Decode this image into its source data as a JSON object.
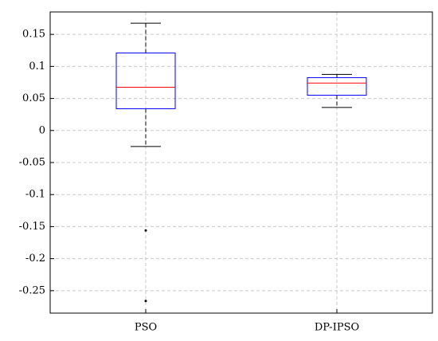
{
  "chart_data": {
    "type": "box",
    "categories": [
      "PSO",
      "DP-IPSO"
    ],
    "boxes": [
      {
        "whislo": -0.025,
        "q1": 0.034,
        "med": 0.0675,
        "q3": 0.121,
        "whishi": 0.1675,
        "fliers": [
          -0.156,
          -0.266
        ]
      },
      {
        "whislo": 0.036,
        "q1": 0.055,
        "med": 0.074,
        "q3": 0.0825,
        "whishi": 0.0875
      }
    ],
    "ylim": [
      -0.285,
      0.185
    ],
    "yticks": [
      -0.25,
      -0.2,
      -0.15,
      -0.1,
      -0.05,
      0,
      0.05,
      0.1,
      0.15
    ],
    "grid": true,
    "box_color": "#0000ff",
    "median_color": "#ff0000",
    "whisker_color": "#000000"
  }
}
